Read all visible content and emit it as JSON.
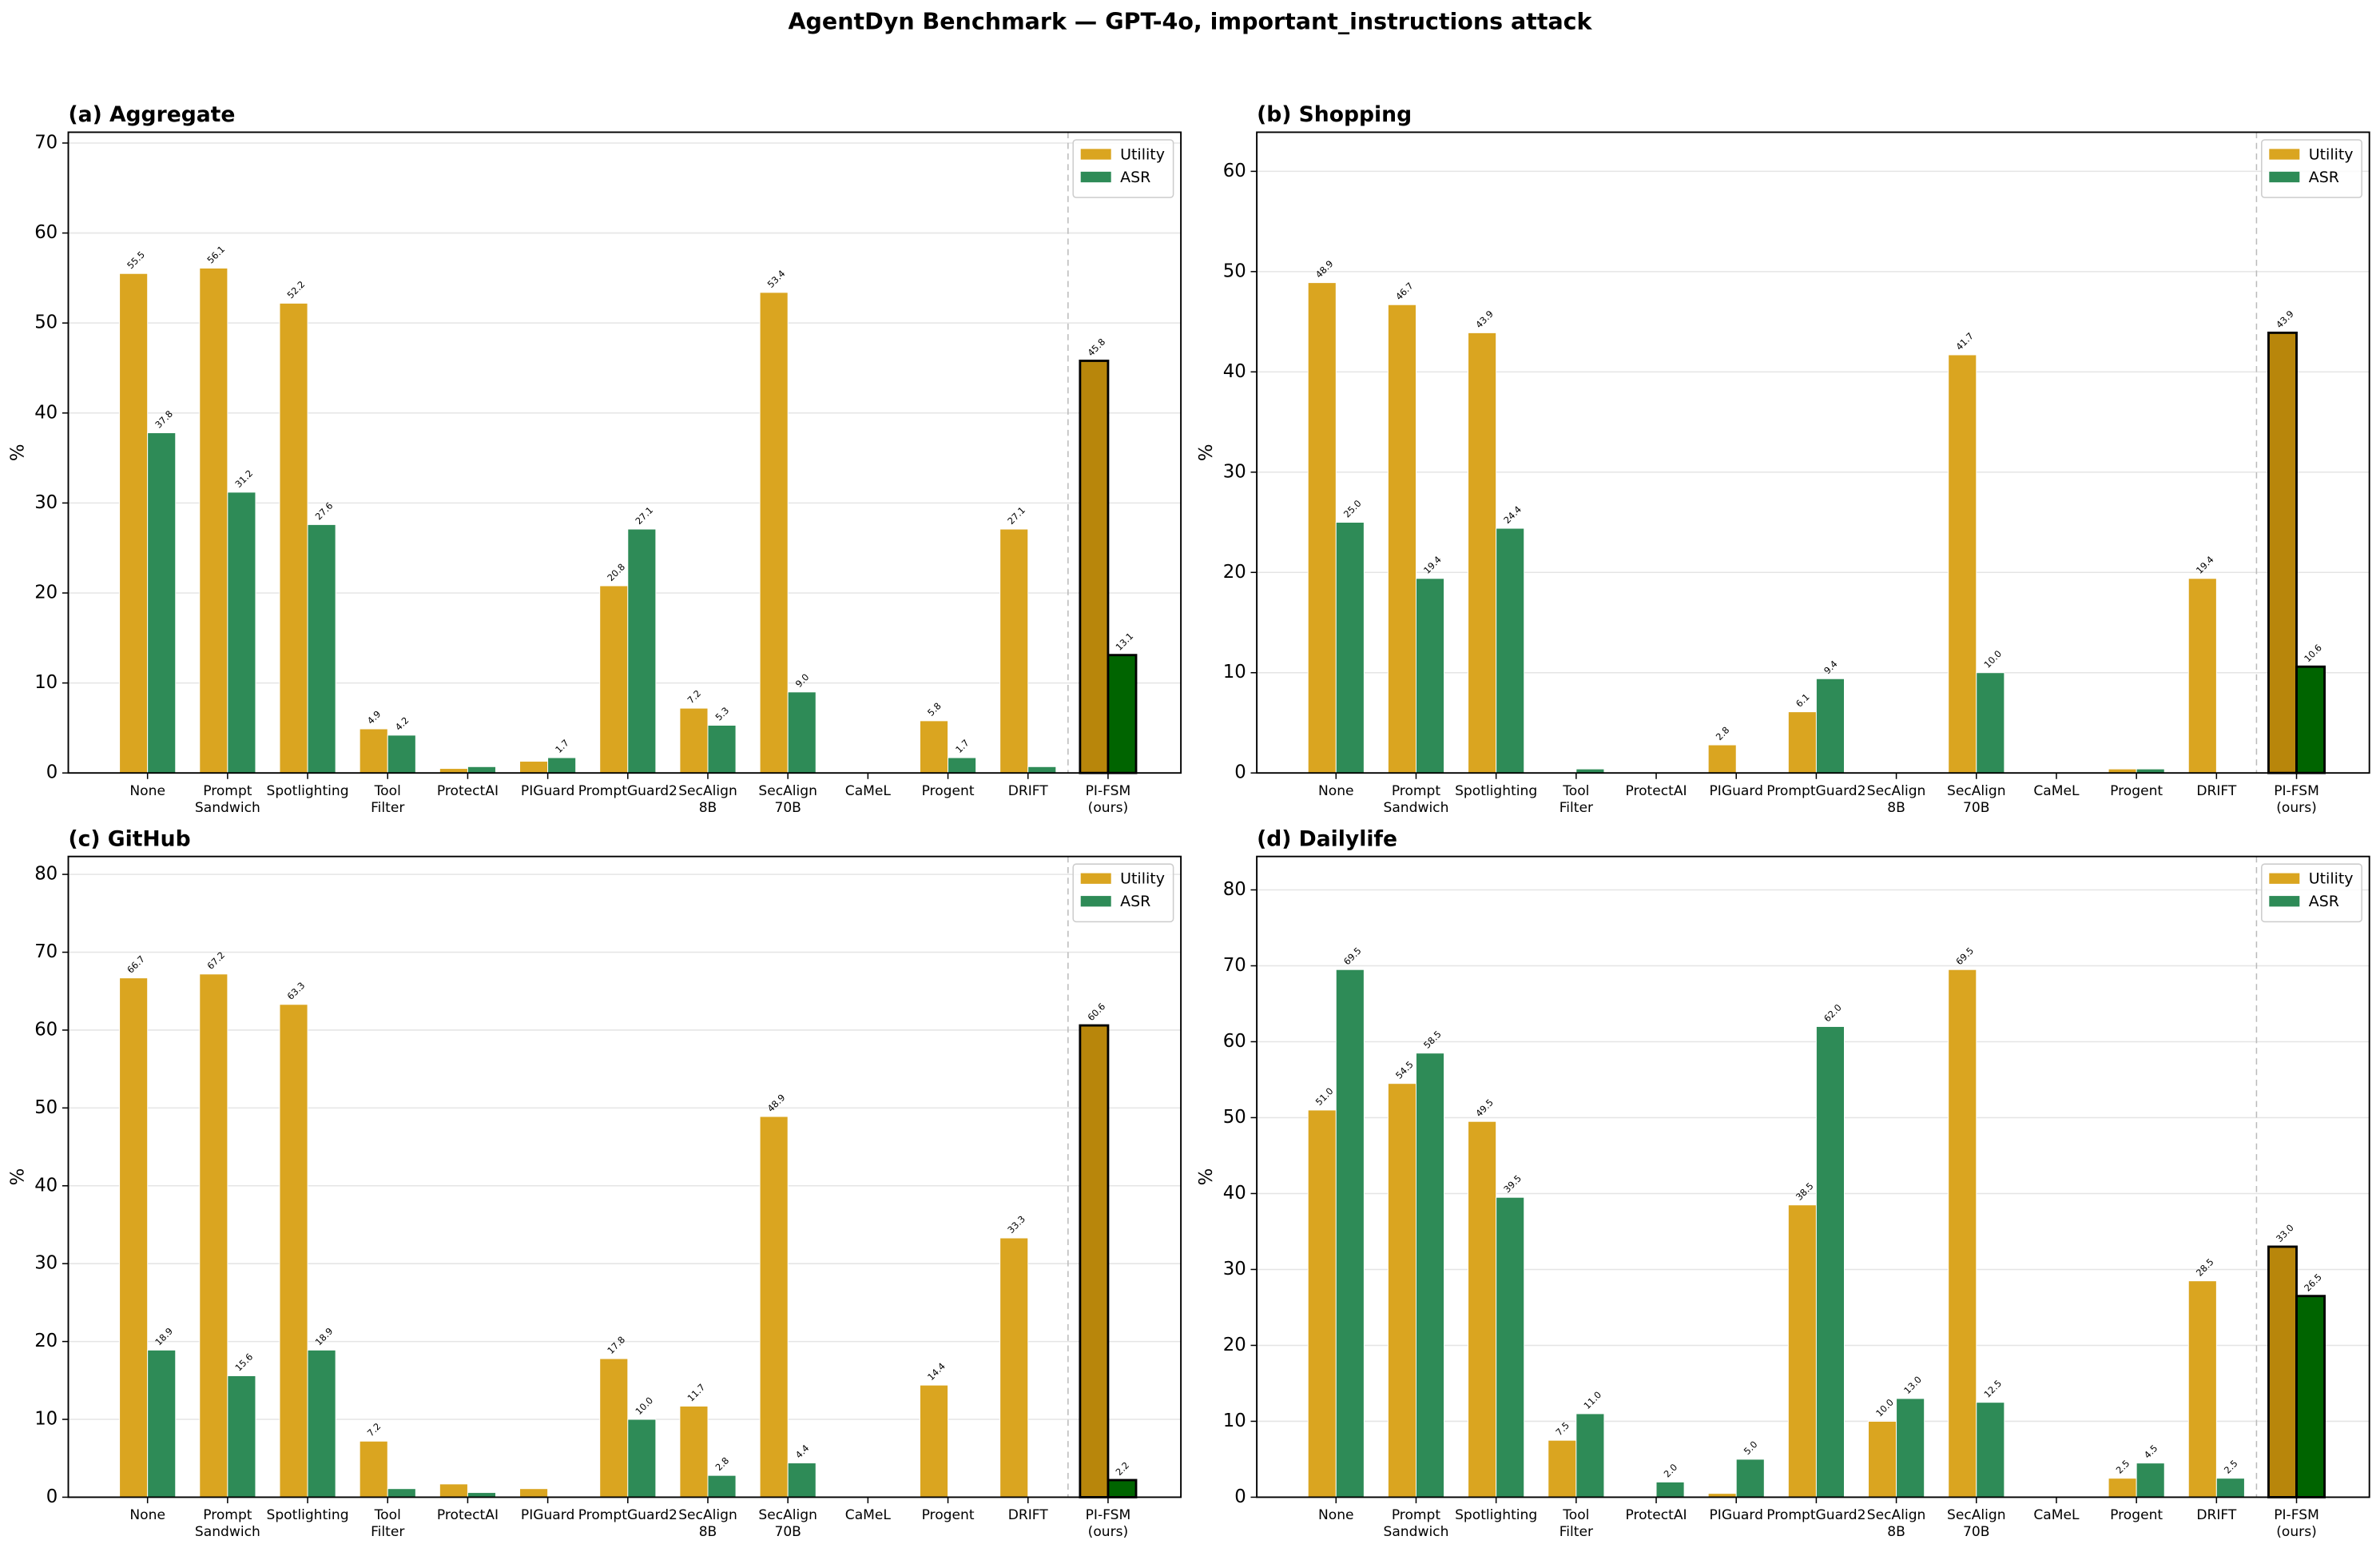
{
  "title": "AgentDyn Benchmark — GPT-4o, important_instructions attack",
  "chart_data": [
    {
      "type": "bar",
      "title": "(a) Aggregate",
      "ylabel": "%",
      "categories": [
        "None",
        "Prompt\nSandwich",
        "Spotlighting",
        "Tool\nFilter",
        "ProtectAI",
        "PIGuard",
        "PromptGuard2",
        "SecAlign\n8B",
        "SecAlign\n70B",
        "CaMeL",
        "Progent",
        "DRIFT",
        "PI-FSM\n(ours)"
      ],
      "series": [
        {
          "name": "Utility",
          "color": "#daa520",
          "highlight_color": "#b8860b",
          "values": [
            55.5,
            56.1,
            52.2,
            4.9,
            0.5,
            1.3,
            20.8,
            7.2,
            53.4,
            0,
            5.8,
            27.1,
            45.8
          ],
          "value_labels": [
            "55.5",
            "56.1",
            "52.2",
            "4.9",
            null,
            null,
            "20.8",
            "7.2",
            "53.4",
            null,
            "5.8",
            "27.1",
            "45.8"
          ]
        },
        {
          "name": "ASR",
          "color": "#2e8b57",
          "highlight_color": "#006400",
          "values": [
            37.8,
            31.2,
            27.6,
            4.2,
            0.7,
            1.7,
            27.1,
            5.3,
            9.0,
            0,
            1.7,
            0.7,
            13.1
          ],
          "value_labels": [
            "37.8",
            "31.2",
            "27.6",
            "4.2",
            null,
            "1.7",
            "27.1",
            "5.3",
            "9.0",
            null,
            "1.7",
            null,
            "13.1"
          ]
        }
      ],
      "ylim": [
        0,
        71.2
      ],
      "yticks": [
        0,
        10,
        20,
        30,
        40,
        50,
        60,
        70
      ],
      "grid": true,
      "legend": "upper right"
    },
    {
      "type": "bar",
      "title": "(b) Shopping",
      "ylabel": "%",
      "categories": [
        "None",
        "Prompt\nSandwich",
        "Spotlighting",
        "Tool\nFilter",
        "ProtectAI",
        "PIGuard",
        "PromptGuard2",
        "SecAlign\n8B",
        "SecAlign\n70B",
        "CaMeL",
        "Progent",
        "DRIFT",
        "PI-FSM\n(ours)"
      ],
      "series": [
        {
          "name": "Utility",
          "color": "#daa520",
          "highlight_color": "#b8860b",
          "values": [
            48.9,
            46.7,
            43.9,
            0,
            0,
            2.8,
            6.1,
            0,
            41.7,
            0,
            0.4,
            19.4,
            43.9
          ],
          "value_labels": [
            "48.9",
            "46.7",
            "43.9",
            null,
            null,
            "2.8",
            "6.1",
            null,
            "41.7",
            null,
            null,
            "19.4",
            "43.9"
          ]
        },
        {
          "name": "ASR",
          "color": "#2e8b57",
          "highlight_color": "#006400",
          "values": [
            25.0,
            19.4,
            24.4,
            0.4,
            0,
            0,
            9.4,
            0,
            10.0,
            0,
            0.4,
            0,
            10.6
          ],
          "value_labels": [
            "25.0",
            "19.4",
            "24.4",
            null,
            null,
            null,
            "9.4",
            null,
            "10.0",
            null,
            null,
            null,
            "10.6"
          ]
        }
      ],
      "ylim": [
        0,
        63.9
      ],
      "yticks": [
        0,
        10,
        20,
        30,
        40,
        50,
        60
      ],
      "grid": true,
      "legend": "upper right"
    },
    {
      "type": "bar",
      "title": "(c) GitHub",
      "ylabel": "%",
      "categories": [
        "None",
        "Prompt\nSandwich",
        "Spotlighting",
        "Tool\nFilter",
        "ProtectAI",
        "PIGuard",
        "PromptGuard2",
        "SecAlign\n8B",
        "SecAlign\n70B",
        "CaMeL",
        "Progent",
        "DRIFT",
        "PI-FSM\n(ours)"
      ],
      "series": [
        {
          "name": "Utility",
          "color": "#daa520",
          "highlight_color": "#b8860b",
          "values": [
            66.7,
            67.2,
            63.3,
            7.2,
            1.7,
            1.1,
            17.8,
            11.7,
            48.9,
            0,
            14.4,
            33.3,
            60.6
          ],
          "value_labels": [
            "66.7",
            "67.2",
            "63.3",
            "7.2",
            null,
            null,
            "17.8",
            "11.7",
            "48.9",
            null,
            "14.4",
            "33.3",
            "60.6"
          ]
        },
        {
          "name": "ASR",
          "color": "#2e8b57",
          "highlight_color": "#006400",
          "values": [
            18.9,
            15.6,
            18.9,
            1.1,
            0.6,
            0,
            10.0,
            2.8,
            4.4,
            0,
            0,
            0,
            2.2
          ],
          "value_labels": [
            "18.9",
            "15.6",
            "18.9",
            null,
            null,
            null,
            "10.0",
            "2.8",
            "4.4",
            null,
            null,
            null,
            "2.2"
          ]
        }
      ],
      "ylim": [
        0,
        82.3
      ],
      "yticks": [
        0,
        10,
        20,
        30,
        40,
        50,
        60,
        70,
        80
      ],
      "grid": true,
      "legend": "upper right"
    },
    {
      "type": "bar",
      "title": "(d) Dailylife",
      "ylabel": "%",
      "categories": [
        "None",
        "Prompt\nSandwich",
        "Spotlighting",
        "Tool\nFilter",
        "ProtectAI",
        "PIGuard",
        "PromptGuard2",
        "SecAlign\n8B",
        "SecAlign\n70B",
        "CaMeL",
        "Progent",
        "DRIFT",
        "PI-FSM\n(ours)"
      ],
      "series": [
        {
          "name": "Utility",
          "color": "#daa520",
          "highlight_color": "#b8860b",
          "values": [
            51.0,
            54.5,
            49.5,
            7.5,
            0,
            0.5,
            38.5,
            10.0,
            69.5,
            0,
            2.5,
            28.5,
            33.0
          ],
          "value_labels": [
            "51.0",
            "54.5",
            "49.5",
            "7.5",
            null,
            null,
            "38.5",
            "10.0",
            "69.5",
            null,
            "2.5",
            "28.5",
            "33.0"
          ]
        },
        {
          "name": "ASR",
          "color": "#2e8b57",
          "highlight_color": "#006400",
          "values": [
            69.5,
            58.5,
            39.5,
            11.0,
            2.0,
            5.0,
            62.0,
            13.0,
            12.5,
            0,
            4.5,
            2.5,
            26.5
          ],
          "value_labels": [
            "69.5",
            "58.5",
            "39.5",
            "11.0",
            "2.0",
            "5.0",
            "62.0",
            "13.0",
            "12.5",
            null,
            "4.5",
            "2.5",
            "26.5"
          ]
        }
      ],
      "ylim": [
        0,
        84.4
      ],
      "yticks": [
        0,
        10,
        20,
        30,
        40,
        50,
        60,
        70,
        80
      ],
      "grid": true,
      "legend": "upper right"
    }
  ]
}
